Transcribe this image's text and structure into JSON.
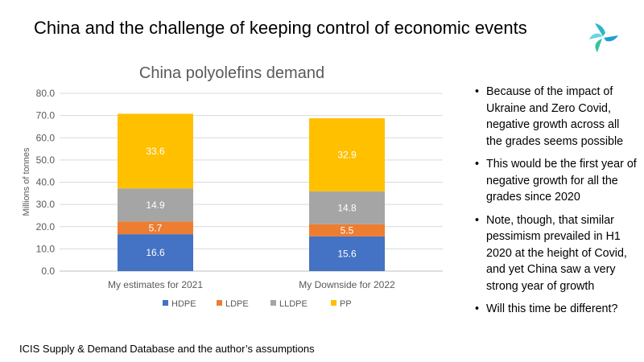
{
  "slide": {
    "title": "China and the challenge of keeping control of economic events",
    "source": "ICIS Supply & Demand Database and the author’s assumptions"
  },
  "bullets": [
    {
      "text": "Because of the impact of Ukraine and Zero Covid, negative growth across all the grades seems possible"
    },
    {
      "text": "This would be the first year of negative growth for all the grades since 2020"
    },
    {
      "text": "Note, though, that similar pessimism prevailed in H1 2020 at the height of Covid, and yet China saw a very strong year of growth"
    },
    {
      "text": "Will this time be different?"
    }
  ],
  "chart_data": {
    "type": "bar",
    "stacked": true,
    "title": "China polyolefins demand",
    "ylabel": "Millions of tonnes",
    "xlabel": "",
    "ylim": [
      0,
      80
    ],
    "yticks": [
      "0.0",
      "10.0",
      "20.0",
      "30.0",
      "40.0",
      "50.0",
      "60.0",
      "70.0",
      "80.0"
    ],
    "grid": true,
    "legend_position": "bottom",
    "categories": [
      "My estimates for 2021",
      "My Downside for 2022"
    ],
    "series": [
      {
        "name": "HDPE",
        "color": "#4472C4",
        "values": [
          16.6,
          15.6
        ],
        "labels": [
          "16.6",
          "15.6"
        ]
      },
      {
        "name": "LDPE",
        "color": "#ED7D31",
        "values": [
          5.7,
          5.5
        ],
        "labels": [
          "5.7",
          "5.5"
        ]
      },
      {
        "name": "LLDPE",
        "color": "#A5A5A5",
        "values": [
          14.9,
          14.8
        ],
        "labels": [
          "14.9",
          "14.8"
        ]
      },
      {
        "name": "PP",
        "color": "#FFC000",
        "values": [
          33.6,
          32.9
        ],
        "labels": [
          "33.6",
          "32.9"
        ]
      }
    ]
  }
}
